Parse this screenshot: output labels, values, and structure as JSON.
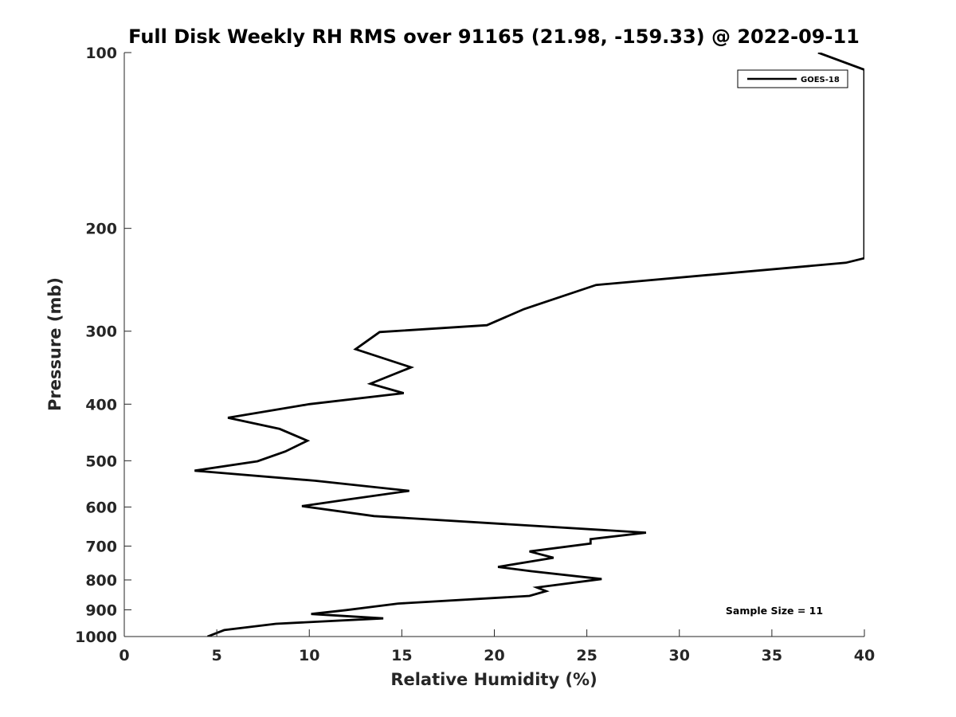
{
  "chart_data": {
    "type": "line",
    "title": "Full Disk Weekly RH RMS over 91165 (21.98, -159.33) @ 2022-09-11",
    "xlabel": "Relative Humidity (%)",
    "ylabel": "Pressure (mb)",
    "xlim": [
      0,
      40
    ],
    "ylim": [
      100,
      1000
    ],
    "y_scale": "log",
    "y_reversed": true,
    "grid": false,
    "legend_position": "top-right",
    "xticks": [
      0,
      5,
      10,
      15,
      20,
      25,
      30,
      35,
      40
    ],
    "yticks": [
      100,
      200,
      300,
      400,
      500,
      600,
      700,
      800,
      900,
      1000
    ],
    "series": [
      {
        "name": "GOES-18",
        "color": "#000000",
        "points": [
          [
            37.5,
            100
          ],
          [
            40.0,
            107
          ],
          [
            40.0,
            225
          ],
          [
            39.0,
            229
          ],
          [
            25.5,
            250
          ],
          [
            21.6,
            275
          ],
          [
            19.6,
            293
          ],
          [
            13.8,
            301
          ],
          [
            12.5,
            322
          ],
          [
            15.5,
            346
          ],
          [
            13.3,
            369
          ],
          [
            15.1,
            383
          ],
          [
            10.0,
            400
          ],
          [
            5.6,
            422
          ],
          [
            8.4,
            441
          ],
          [
            9.9,
            462
          ],
          [
            8.7,
            482
          ],
          [
            7.2,
            501
          ],
          [
            3.8,
            520
          ],
          [
            10.3,
            541
          ],
          [
            15.4,
            563
          ],
          [
            12.0,
            583
          ],
          [
            9.6,
            598
          ],
          [
            13.5,
            622
          ],
          [
            28.2,
            664
          ],
          [
            25.2,
            681
          ],
          [
            25.2,
            693
          ],
          [
            21.9,
            715
          ],
          [
            23.2,
            733
          ],
          [
            20.2,
            760
          ],
          [
            22.0,
            773
          ],
          [
            25.8,
            797
          ],
          [
            22.3,
            824
          ],
          [
            22.8,
            836
          ],
          [
            21.9,
            852
          ],
          [
            14.8,
            878
          ],
          [
            12.0,
            901
          ],
          [
            10.1,
            915
          ],
          [
            14.0,
            931
          ],
          [
            8.2,
            951
          ],
          [
            5.4,
            975
          ],
          [
            4.5,
            1000
          ]
        ]
      }
    ],
    "annotation": "Sample Size = 11"
  }
}
